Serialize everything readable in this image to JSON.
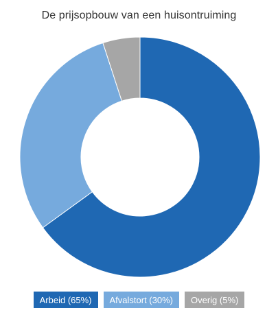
{
  "chart_data": {
    "type": "pie",
    "variant": "donut",
    "title": "De prijsopbouw van een huisontruiming",
    "categories": [
      "Arbeid",
      "Afvalstort",
      "Overig"
    ],
    "values": [
      65,
      30,
      5
    ],
    "unit": "%",
    "colors": [
      "#1f68b3",
      "#76aadd",
      "#a6a6a6"
    ],
    "slice_border_color": "#ffffff",
    "legend_position": "bottom",
    "legend": [
      {
        "label": "Arbeid (65%)",
        "color": "#1f68b3"
      },
      {
        "label": "Afvalstort (30%)",
        "color": "#76aadd"
      },
      {
        "label": "Overig (5%)",
        "color": "#a6a6a6"
      }
    ]
  }
}
